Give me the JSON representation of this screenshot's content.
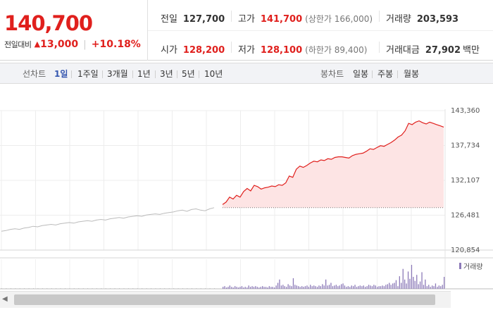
{
  "quote": {
    "price": "140,700",
    "change_label": "전일대비",
    "change_arrow": "▲",
    "change_amount": "13,000",
    "change_rate": "+10.18%"
  },
  "stats": {
    "prev_close_label": "전일",
    "prev_close": "127,700",
    "high_label": "고가",
    "high": "141,700",
    "upper_limit": "(상한가 166,000)",
    "volume_label": "거래량",
    "volume": "203,593",
    "open_label": "시가",
    "open": "128,200",
    "low_label": "저가",
    "low": "128,100",
    "lower_limit": "(하한가 89,400)",
    "trade_value_label": "거래대금",
    "trade_value": "27,902",
    "trade_value_unit": "백만"
  },
  "period_bar": {
    "line_chart_label": "선차트",
    "ranges": [
      "1일",
      "1주일",
      "3개월",
      "1년",
      "3년",
      "5년",
      "10년"
    ],
    "active_range": "1일",
    "candle_label": "봉차트",
    "candle_ranges": [
      "일봉",
      "주봉",
      "월봉"
    ]
  },
  "colors": {
    "up": "#e0201d",
    "prev_day_line": "#bbbbbb",
    "area_fill": "#fde4e4",
    "volume_bar": "#8c7ab8"
  },
  "chart_data": {
    "type": "line",
    "title": "",
    "y_ticks": [
      "143,360",
      "137,734",
      "132,107",
      "126,481",
      "120,854"
    ],
    "y_tick_values": [
      143360,
      137734,
      132107,
      126481,
      120854
    ],
    "ylim": [
      120854,
      143360
    ],
    "baseline": 127700,
    "grid": true,
    "legend": {
      "volume_label": "거래량",
      "placement": "top-right of volume pane"
    },
    "series": [
      {
        "name": "",
        "role": "previous_session",
        "values": [
          123900,
          124000,
          124200,
          124300,
          124200,
          124400,
          124500,
          124700,
          124600,
          124800,
          124900,
          125000,
          124900,
          125100,
          125200,
          125300,
          125200,
          125400,
          125500,
          125600,
          125500,
          125700,
          125800,
          125700,
          125900,
          126000,
          126100,
          126000,
          126200,
          126300,
          126400,
          126300,
          126500,
          126600,
          126700,
          126600,
          126800,
          126900,
          127000,
          127200,
          127300,
          127100,
          127400,
          127500,
          127300,
          127200,
          127500,
          127700
        ]
      },
      {
        "name": "",
        "role": "current_session",
        "values": [
          128200,
          128600,
          129400,
          129100,
          129700,
          129400,
          130300,
          130800,
          130400,
          131300,
          131100,
          130700,
          130900,
          131000,
          131200,
          131100,
          131400,
          131300,
          131700,
          132800,
          132600,
          133900,
          134400,
          134200,
          134500,
          134900,
          135200,
          135100,
          135400,
          135300,
          135600,
          135500,
          135800,
          135900,
          135900,
          135800,
          135700,
          136100,
          136300,
          136400,
          136500,
          136800,
          137200,
          137100,
          137400,
          137700,
          137600,
          137900,
          138200,
          138600,
          139100,
          139400,
          140100,
          141300,
          141100,
          141500,
          141700,
          141400,
          141200,
          141500,
          141300,
          141100,
          140900,
          140700
        ]
      }
    ],
    "volume_pre": [
      1,
      1,
      1,
      1,
      1,
      1,
      1,
      1,
      1,
      1,
      1,
      1,
      1,
      1,
      1,
      1,
      1,
      1,
      1,
      1,
      1,
      1,
      1,
      1,
      1,
      1,
      1,
      1,
      1,
      1,
      1,
      1,
      1,
      1,
      1,
      1,
      1,
      1,
      1,
      1,
      1,
      1,
      1,
      1,
      1,
      1,
      1,
      1
    ],
    "volume": [
      3,
      4,
      2,
      3,
      5,
      3,
      2,
      4,
      3,
      2,
      3,
      4,
      2,
      3,
      2,
      5,
      3,
      4,
      3,
      4,
      3,
      2,
      3,
      4,
      3,
      3,
      2,
      4,
      3,
      3,
      2,
      5,
      9,
      14,
      5,
      6,
      4,
      3,
      7,
      5,
      4,
      16,
      6,
      5,
      4,
      3,
      4,
      3,
      4,
      5,
      3,
      6,
      4,
      5,
      4,
      3,
      5,
      4,
      7,
      5,
      14,
      5,
      6,
      9,
      4,
      5,
      6,
      4,
      5,
      7,
      8,
      5,
      3,
      4,
      3,
      5,
      4,
      6,
      3,
      4,
      5,
      4,
      5,
      3,
      4,
      6,
      5,
      4,
      6,
      5,
      3,
      4,
      4,
      5,
      4,
      6,
      7,
      9,
      6,
      8,
      9,
      13,
      4,
      19,
      9,
      30,
      14,
      8,
      26,
      15,
      36,
      18,
      12,
      21,
      7,
      11,
      25,
      6,
      14,
      4,
      6,
      3,
      5,
      4,
      8,
      3,
      5,
      4,
      6,
      18
    ]
  }
}
